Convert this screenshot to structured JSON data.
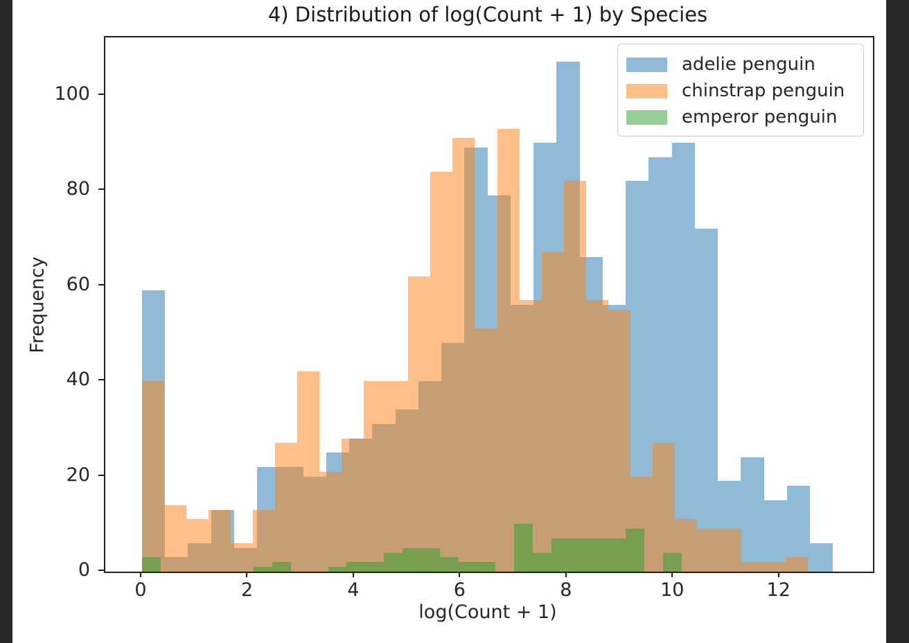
{
  "window": {
    "border_color": "#28282b",
    "background": "#ffffff"
  },
  "chart_data": {
    "type": "histogram",
    "title": "4) Distribution of log(Count + 1) by Species",
    "xlabel": "log(Count + 1)",
    "ylabel": "Frequency",
    "xlim": [
      -0.69,
      13.75
    ],
    "ylim": [
      0,
      112.15
    ],
    "xticks": [
      0,
      2,
      4,
      6,
      8,
      10,
      12
    ],
    "yticks": [
      0,
      20,
      40,
      60,
      80,
      100
    ],
    "grid": false,
    "bar_alpha": 0.5,
    "legend_position": "upper right",
    "series": [
      {
        "name": "adelie penguin",
        "color": "#1f77b4",
        "bin_start": 0,
        "bin_width": 0.4333,
        "counts": [
          59,
          3,
          6,
          13,
          5,
          22,
          22,
          20,
          25,
          28,
          31,
          34,
          40,
          48,
          89,
          79,
          56,
          90,
          107,
          66,
          56,
          82,
          87,
          90,
          72,
          19,
          24,
          15,
          18,
          6
        ]
      },
      {
        "name": "chinstrap penguin",
        "color": "#ff7f0e",
        "bin_start": 0,
        "bin_width": 0.4175,
        "counts": [
          40,
          14,
          11,
          13,
          6,
          13,
          27,
          42,
          21,
          28,
          40,
          40,
          62,
          84,
          91,
          51,
          93,
          57,
          67,
          82,
          57,
          55,
          20,
          27,
          11,
          9,
          9,
          2,
          2,
          3
        ]
      },
      {
        "name": "emperor penguin",
        "color": "#2ca02c",
        "bin_start": 0,
        "bin_width": 0.35,
        "counts": [
          3,
          0,
          0,
          0,
          0,
          0,
          1,
          2,
          0,
          0,
          1,
          2,
          2,
          4,
          5,
          5,
          3,
          2,
          2,
          0,
          10,
          4,
          7,
          7,
          7,
          7,
          9,
          0,
          4,
          0
        ]
      }
    ]
  }
}
